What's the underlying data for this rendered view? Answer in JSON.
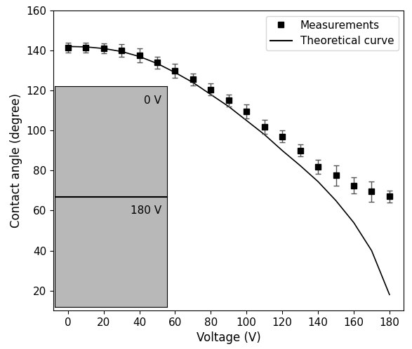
{
  "chart_data": {
    "type": "scatter",
    "x_label": "Voltage (V)",
    "y_label": "Contact angle (degree)",
    "xlim": [
      -8,
      188
    ],
    "ylim": [
      10,
      160
    ],
    "xticks": [
      0,
      20,
      40,
      60,
      80,
      100,
      120,
      140,
      160,
      180
    ],
    "yticks": [
      20,
      40,
      60,
      80,
      100,
      120,
      140,
      160
    ],
    "legend": "upper right",
    "annotations": [
      "0 V",
      "180 V"
    ],
    "series": [
      {
        "name": "Measurements",
        "type": "scatter",
        "marker": "square",
        "color": "#000000",
        "x": [
          0,
          10,
          20,
          30,
          40,
          50,
          60,
          70,
          80,
          90,
          100,
          110,
          120,
          130,
          140,
          150,
          160,
          170,
          180
        ],
        "values": [
          141.5,
          141.5,
          141,
          140,
          137.5,
          134,
          130,
          125.5,
          120.5,
          115,
          109.5,
          102,
          97,
          90,
          82,
          77.5,
          72.5,
          69.5,
          67
        ],
        "errors": [
          2.5,
          2.5,
          2.5,
          3,
          3.5,
          3,
          3.5,
          3,
          3,
          3,
          3.5,
          3.5,
          3,
          3,
          3.5,
          5,
          4,
          5,
          3
        ]
      },
      {
        "name": "Theoretical curve",
        "type": "line",
        "line_style": "solid",
        "color": "#000000",
        "x": [
          0,
          10,
          20,
          30,
          40,
          50,
          60,
          70,
          80,
          90,
          100,
          110,
          120,
          130,
          140,
          150,
          160,
          170,
          180
        ],
        "values": [
          142,
          141.8,
          141,
          139.5,
          137,
          133.5,
          129,
          124,
          118,
          112,
          105,
          98,
          90,
          82.5,
          74.5,
          65,
          54,
          40,
          18
        ]
      }
    ]
  }
}
